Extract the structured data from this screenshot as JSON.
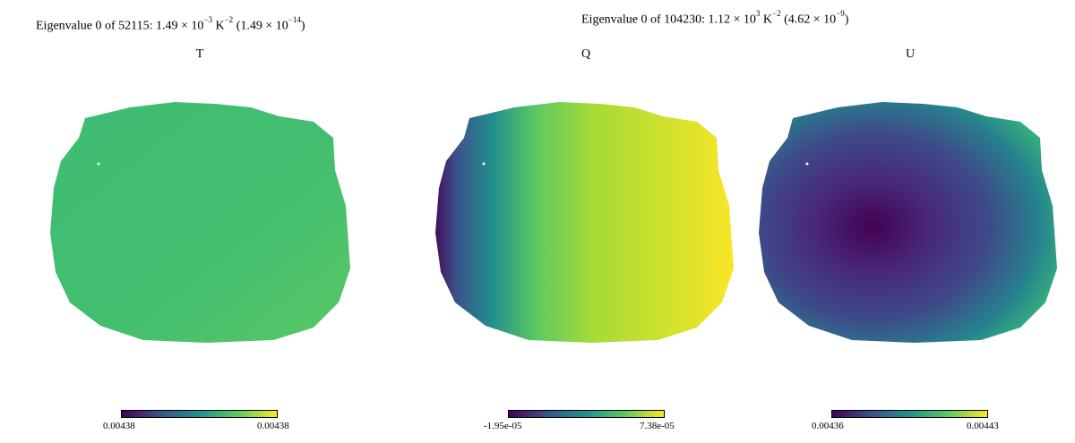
{
  "titles": {
    "left": {
      "prefix": "Eigenvalue 0 of 52115: 1.49 × 10",
      "exp1": "−3",
      "mid": " K",
      "exp2": "−2",
      "paren_prefix": " (1.49 × 10",
      "paren_exp": "−14",
      "paren_suffix": ")"
    },
    "right": {
      "prefix": "Eigenvalue 0 of 104230: 1.12 × 10",
      "exp1": "3",
      "mid": " K",
      "exp2": "−2",
      "paren_prefix": " (4.62 × 10",
      "paren_exp": "−9",
      "paren_suffix": ")"
    }
  },
  "panels": [
    {
      "name": "T",
      "cbar_min": "0.00438",
      "cbar_max": "0.00438"
    },
    {
      "name": "Q",
      "cbar_min": "-1.95e-05",
      "cbar_max": "7.38e-05"
    },
    {
      "name": "U",
      "cbar_min": "0.00436",
      "cbar_max": "0.00443"
    }
  ],
  "colors": {
    "viridis_low": "#440154",
    "viridis_mid": "#21918c",
    "viridis_high": "#fde725",
    "t_map": "#3dbb74"
  }
}
